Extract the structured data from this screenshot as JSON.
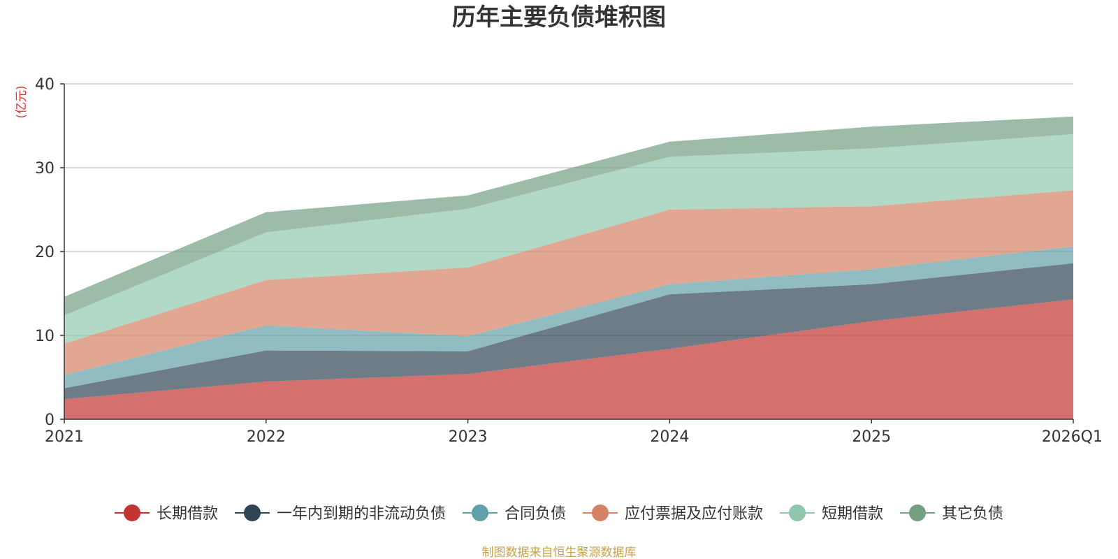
{
  "chart_data": {
    "type": "area",
    "stacked": true,
    "title": "历年主要负债堆积图",
    "unit_label": "(亿元)",
    "xlabel": "",
    "ylabel": "(亿元)",
    "x": [
      "2021",
      "2022",
      "2023",
      "2024",
      "2025",
      "2026Q1"
    ],
    "ylim": [
      0,
      40
    ],
    "yticks": [
      0,
      10,
      20,
      30,
      40
    ],
    "grid": true,
    "legend_position": "bottom",
    "series": [
      {
        "name": "长期借款",
        "color": "#c23531",
        "values": [
          2.4,
          4.5,
          5.4,
          8.4,
          11.7,
          14.3
        ]
      },
      {
        "name": "一年内到期的非流动负债",
        "color": "#2f4554",
        "values": [
          1.3,
          3.7,
          2.7,
          6.5,
          4.4,
          4.3
        ]
      },
      {
        "name": "合同负债",
        "color": "#61a0a8",
        "values": [
          1.6,
          3.0,
          1.8,
          1.2,
          1.8,
          2.0
        ]
      },
      {
        "name": "应付票据及应付账款",
        "color": "#d48265",
        "values": [
          3.7,
          5.4,
          8.2,
          8.9,
          7.5,
          6.7
        ]
      },
      {
        "name": "短期借款",
        "color": "#91c7ae",
        "values": [
          3.4,
          5.7,
          7.0,
          6.3,
          6.9,
          6.7
        ]
      },
      {
        "name": "其它负债",
        "color": "#749f83",
        "values": [
          2.2,
          2.4,
          1.6,
          1.8,
          2.6,
          2.1
        ]
      }
    ],
    "source": "制图数据来自恒生聚源数据库"
  }
}
